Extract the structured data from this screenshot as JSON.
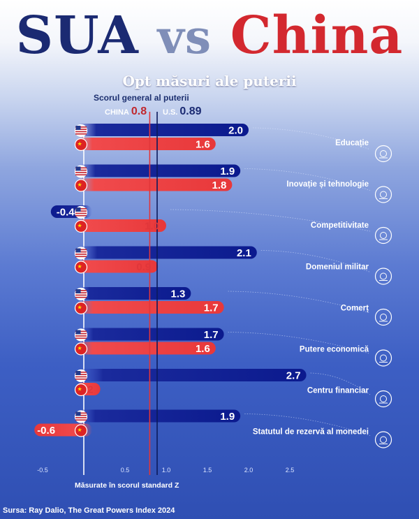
{
  "header": {
    "title_us": "SUA",
    "title_vs": "vs",
    "title_china": "China",
    "subtitle": "Opt măsuri ale puterii"
  },
  "overall": {
    "title": "Scorul general al puterii",
    "china_label": "CHINA",
    "china_value": "0.8",
    "us_label": "U.S.",
    "us_value": "0.89"
  },
  "footer": {
    "xlabel": "Măsurate în scorul standard Z",
    "source": "Sursa: Ray Dalio, The Great Powers Index 2024"
  },
  "colors": {
    "us": "#0d1e8c",
    "china": "#ec3a3c",
    "china_text": "#e0363a",
    "us_line": "#0b1a5c",
    "china_line": "#e2363a"
  },
  "chart_data": {
    "type": "bar",
    "categories": [
      "Educație",
      "Inovație și tehnologie",
      "Competitivitate",
      "Domeniul militar",
      "Comerț",
      "Putere economică",
      "Centru financiar",
      "Statutul de rezervă al monedei"
    ],
    "series": [
      {
        "values": [
          2.0,
          1.9,
          -0.4,
          2.1,
          1.3,
          1.7,
          2.7,
          1.9
        ]
      },
      {
        "values": [
          1.6,
          1.8,
          1.0,
          0.9,
          1.7,
          1.6,
          0.2,
          -0.6
        ]
      }
    ],
    "overall": {
      "china": 0.8,
      "us": 0.89
    },
    "x_ticks": [
      "-0.5",
      "0.5",
      "1.0",
      "1.5",
      "2.0",
      "2.5"
    ],
    "xlim": [
      -0.5,
      2.7
    ],
    "xlabel": "Măsurate în scorul standard Z",
    "grid": false
  }
}
